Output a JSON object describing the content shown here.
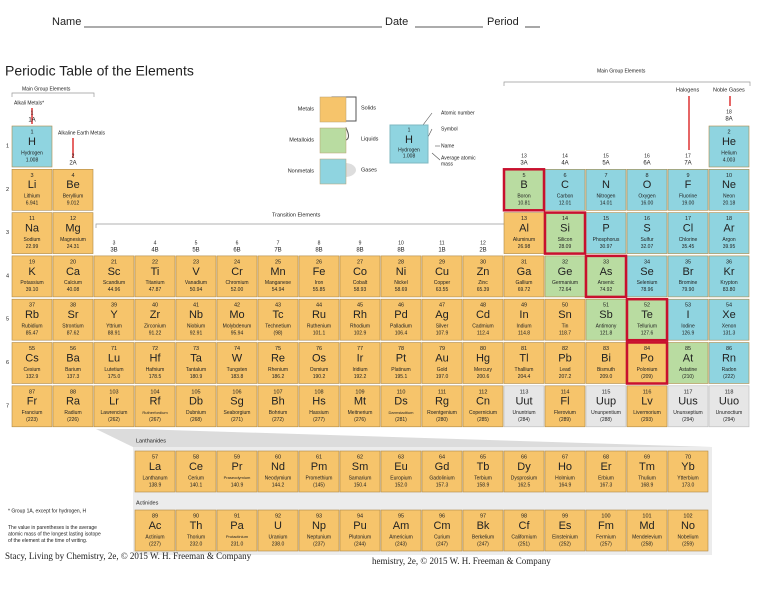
{
  "header": {
    "name": "Name",
    "date": "Date",
    "period": "Period"
  },
  "title": "Periodic Table of the Elements",
  "labels": {
    "main_group_left": "Main Group Elements",
    "alkali": "Alkali Metals*",
    "alkaline": "Alkaline Earth Metals",
    "transition": "Transition Elements",
    "main_group_right": "Main Group Elements",
    "halogens": "Halogens",
    "noble": "Noble Gases",
    "lanthanides": "Lanthanides",
    "actinides": "Actinides"
  },
  "legend": [
    {
      "label": "Metals",
      "color": "#f6c46b"
    },
    {
      "label": "Metalloids",
      "color": "#b9dca1"
    },
    {
      "label": "Nonmetals",
      "color": "#8fd4e0"
    }
  ],
  "unknown_color": "#e6e6e6",
  "states": [
    "Solids",
    "Liquids",
    "Gases"
  ],
  "key": {
    "number": 1,
    "symbol": "H",
    "name": "Hydrogen",
    "mass": "1.008",
    "callouts": [
      "Atomic number",
      "Symbol",
      "Name",
      "Average atomic",
      "mass"
    ]
  },
  "periods": [
    1,
    2,
    3,
    4,
    5,
    6,
    7
  ],
  "groups": [
    {
      "number": 1,
      "label": "1A"
    },
    {
      "number": 2,
      "label": "2A"
    },
    {
      "number": 3,
      "label": "3B"
    },
    {
      "number": 4,
      "label": "4B"
    },
    {
      "number": 5,
      "label": "5B"
    },
    {
      "number": 6,
      "label": "6B"
    },
    {
      "number": 7,
      "label": "7B"
    },
    {
      "number": 8,
      "label": "8B"
    },
    {
      "number": 9,
      "label": "8B"
    },
    {
      "number": 10,
      "label": "8B"
    },
    {
      "number": 11,
      "label": "1B"
    },
    {
      "number": 12,
      "label": "2B"
    },
    {
      "number": 13,
      "label": "3A"
    },
    {
      "number": 14,
      "label": "4A"
    },
    {
      "number": 15,
      "label": "5A"
    },
    {
      "number": 16,
      "label": "6A"
    },
    {
      "number": 17,
      "label": "7A"
    },
    {
      "number": 18,
      "label": "8A"
    }
  ],
  "elements": [
    [
      1,
      "H",
      "Hydrogen",
      "1.008",
      2
    ],
    [
      2,
      "He",
      "Helium",
      "4.003",
      2
    ],
    [
      3,
      "Li",
      "Lithium",
      "6.941",
      0
    ],
    [
      4,
      "Be",
      "Beryllium",
      "9.012",
      0
    ],
    [
      5,
      "B",
      "Boron",
      "10.81",
      1
    ],
    [
      6,
      "C",
      "Carbon",
      "12.01",
      2
    ],
    [
      7,
      "N",
      "Nitrogen",
      "14.01",
      2
    ],
    [
      8,
      "O",
      "Oxygen",
      "16.00",
      2
    ],
    [
      9,
      "F",
      "Fluorine",
      "19.00",
      2
    ],
    [
      10,
      "Ne",
      "Neon",
      "20.18",
      2
    ],
    [
      11,
      "Na",
      "Sodium",
      "22.99",
      0
    ],
    [
      12,
      "Mg",
      "Magnesium",
      "24.31",
      0
    ],
    [
      13,
      "Al",
      "Aluminum",
      "26.98",
      0
    ],
    [
      14,
      "Si",
      "Silicon",
      "28.09",
      1
    ],
    [
      15,
      "P",
      "Phosphorus",
      "30.97",
      2
    ],
    [
      16,
      "S",
      "Sulfur",
      "32.07",
      2
    ],
    [
      17,
      "Cl",
      "Chlorine",
      "35.45",
      2
    ],
    [
      18,
      "Ar",
      "Argon",
      "39.95",
      2
    ],
    [
      19,
      "K",
      "Potassium",
      "39.10",
      0
    ],
    [
      20,
      "Ca",
      "Calcium",
      "40.08",
      0
    ],
    [
      21,
      "Sc",
      "Scandium",
      "44.96",
      0
    ],
    [
      22,
      "Ti",
      "Titanium",
      "47.87",
      0
    ],
    [
      23,
      "V",
      "Vanadium",
      "50.94",
      0
    ],
    [
      24,
      "Cr",
      "Chromium",
      "52.00",
      0
    ],
    [
      25,
      "Mn",
      "Manganese",
      "54.94",
      0
    ],
    [
      26,
      "Fe",
      "Iron",
      "55.85",
      0
    ],
    [
      27,
      "Co",
      "Cobalt",
      "58.93",
      0
    ],
    [
      28,
      "Ni",
      "Nickel",
      "58.69",
      0
    ],
    [
      29,
      "Cu",
      "Copper",
      "63.55",
      0
    ],
    [
      30,
      "Zn",
      "Zinc",
      "65.39",
      0
    ],
    [
      31,
      "Ga",
      "Gallium",
      "69.72",
      0
    ],
    [
      32,
      "Ge",
      "Germanium",
      "72.64",
      1
    ],
    [
      33,
      "As",
      "Arsenic",
      "74.92",
      1
    ],
    [
      34,
      "Se",
      "Selenium",
      "78.96",
      2
    ],
    [
      35,
      "Br",
      "Bromine",
      "79.90",
      2
    ],
    [
      36,
      "Kr",
      "Krypton",
      "83.80",
      2
    ],
    [
      37,
      "Rb",
      "Rubidium",
      "85.47",
      0
    ],
    [
      38,
      "Sr",
      "Strontium",
      "87.62",
      0
    ],
    [
      39,
      "Y",
      "Yttrium",
      "88.91",
      0
    ],
    [
      40,
      "Zr",
      "Zirconium",
      "91.22",
      0
    ],
    [
      41,
      "Nb",
      "Niobium",
      "92.91",
      0
    ],
    [
      42,
      "Mo",
      "Molybdenum",
      "95.94",
      0
    ],
    [
      43,
      "Tc",
      "Technetium",
      "(98)",
      0
    ],
    [
      44,
      "Ru",
      "Ruthenium",
      "101.1",
      0
    ],
    [
      45,
      "Rh",
      "Rhodium",
      "102.9",
      0
    ],
    [
      46,
      "Pd",
      "Palladium",
      "106.4",
      0
    ],
    [
      47,
      "Ag",
      "Silver",
      "107.9",
      0
    ],
    [
      48,
      "Cd",
      "Cadmium",
      "112.4",
      0
    ],
    [
      49,
      "In",
      "Indium",
      "114.8",
      0
    ],
    [
      50,
      "Sn",
      "Tin",
      "118.7",
      0
    ],
    [
      51,
      "Sb",
      "Antimony",
      "121.8",
      1
    ],
    [
      52,
      "Te",
      "Tellurium",
      "127.6",
      1
    ],
    [
      53,
      "I",
      "Iodine",
      "126.9",
      2
    ],
    [
      54,
      "Xe",
      "Xenon",
      "131.3",
      2
    ],
    [
      55,
      "Cs",
      "Cesium",
      "132.9",
      0
    ],
    [
      56,
      "Ba",
      "Barium",
      "137.3",
      0
    ],
    [
      57,
      "La",
      "Lanthanum",
      "138.9",
      0
    ],
    [
      58,
      "Ce",
      "Cerium",
      "140.1",
      0
    ],
    [
      59,
      "Pr",
      "Praseodymium",
      "140.9",
      0
    ],
    [
      60,
      "Nd",
      "Neodymium",
      "144.2",
      0
    ],
    [
      61,
      "Pm",
      "Promethium",
      "(145)",
      0
    ],
    [
      62,
      "Sm",
      "Samarium",
      "150.4",
      0
    ],
    [
      63,
      "Eu",
      "Europium",
      "152.0",
      0
    ],
    [
      64,
      "Gd",
      "Gadolinium",
      "157.3",
      0
    ],
    [
      65,
      "Tb",
      "Terbium",
      "158.9",
      0
    ],
    [
      66,
      "Dy",
      "Dysprosium",
      "162.5",
      0
    ],
    [
      67,
      "Ho",
      "Holmium",
      "164.9",
      0
    ],
    [
      68,
      "Er",
      "Erbium",
      "167.3",
      0
    ],
    [
      69,
      "Tm",
      "Thulium",
      "168.9",
      0
    ],
    [
      70,
      "Yb",
      "Ytterbium",
      "173.0",
      0
    ],
    [
      71,
      "Lu",
      "Lutetium",
      "175.0",
      0
    ],
    [
      72,
      "Hf",
      "Hafnium",
      "178.5",
      0
    ],
    [
      73,
      "Ta",
      "Tantalum",
      "180.9",
      0
    ],
    [
      74,
      "W",
      "Tungsten",
      "183.8",
      0
    ],
    [
      75,
      "Re",
      "Rhenium",
      "186.2",
      0
    ],
    [
      76,
      "Os",
      "Osmium",
      "190.2",
      0
    ],
    [
      77,
      "Ir",
      "Iridium",
      "192.2",
      0
    ],
    [
      78,
      "Pt",
      "Platinum",
      "195.1",
      0
    ],
    [
      79,
      "Au",
      "Gold",
      "197.0",
      0
    ],
    [
      80,
      "Hg",
      "Mercury",
      "200.6",
      0
    ],
    [
      81,
      "Tl",
      "Thallium",
      "204.4",
      0
    ],
    [
      82,
      "Pb",
      "Lead",
      "207.2",
      0
    ],
    [
      83,
      "Bi",
      "Bismuth",
      "209.0",
      0
    ],
    [
      84,
      "Po",
      "Polonium",
      "(209)",
      0
    ],
    [
      85,
      "At",
      "Astatine",
      "(210)",
      1
    ],
    [
      86,
      "Rn",
      "Radon",
      "(222)",
      2
    ],
    [
      87,
      "Fr",
      "Francium",
      "(223)",
      0
    ],
    [
      88,
      "Ra",
      "Radium",
      "(226)",
      0
    ],
    [
      89,
      "Ac",
      "Actinium",
      "(227)",
      0
    ],
    [
      90,
      "Th",
      "Thorium",
      "232.0",
      0
    ],
    [
      91,
      "Pa",
      "Protactinium",
      "231.0",
      0
    ],
    [
      92,
      "U",
      "Uranium",
      "238.0",
      0
    ],
    [
      93,
      "Np",
      "Neptunium",
      "(237)",
      0
    ],
    [
      94,
      "Pu",
      "Plutonium",
      "(244)",
      0
    ],
    [
      95,
      "Am",
      "Americium",
      "(243)",
      0
    ],
    [
      96,
      "Cm",
      "Curium",
      "(247)",
      0
    ],
    [
      97,
      "Bk",
      "Berkelium",
      "(247)",
      0
    ],
    [
      98,
      "Cf",
      "Californium",
      "(251)",
      0
    ],
    [
      99,
      "Es",
      "Einsteinium",
      "(252)",
      0
    ],
    [
      100,
      "Fm",
      "Fermium",
      "(257)",
      0
    ],
    [
      101,
      "Md",
      "Mendelevium",
      "(258)",
      0
    ],
    [
      102,
      "No",
      "Nobelium",
      "(259)",
      0
    ],
    [
      103,
      "Lr",
      "Lawrencium",
      "(262)",
      0
    ],
    [
      104,
      "Rf",
      "Rutherfordium",
      "(267)",
      0
    ],
    [
      105,
      "Db",
      "Dubnium",
      "(268)",
      0
    ],
    [
      106,
      "Sg",
      "Seaborgium",
      "(271)",
      0
    ],
    [
      107,
      "Bh",
      "Bohrium",
      "(272)",
      0
    ],
    [
      108,
      "Hs",
      "Hassium",
      "(277)",
      0
    ],
    [
      109,
      "Mt",
      "Meitnerium",
      "(276)",
      0
    ],
    [
      110,
      "Ds",
      "Darmstadtium",
      "(281)",
      0
    ],
    [
      111,
      "Rg",
      "Roentgenium",
      "(280)",
      0
    ],
    [
      112,
      "Cn",
      "Copernicium",
      "(285)",
      0
    ],
    [
      113,
      "Uut",
      "Ununtrium",
      "(284)",
      3
    ],
    [
      114,
      "Fl",
      "Flerovium",
      "(289)",
      0
    ],
    [
      115,
      "Uup",
      "Ununpentium",
      "(288)",
      3
    ],
    [
      116,
      "Lv",
      "Livermorium",
      "(293)",
      0
    ],
    [
      117,
      "Uus",
      "Ununseptium",
      "(294)",
      3
    ],
    [
      118,
      "Uuo",
      "Ununoctium",
      "(294)",
      3
    ]
  ],
  "footnotes": [
    "* Group 1A, except for hydrogen, H",
    "The value in parentheses is the average",
    "atomic mass of the longest lasting isotope",
    "of the element at the time of writing."
  ],
  "credit": "Stacy, Living by Chemistry, 2e, © 2015 W. H. Freeman & Company",
  "credit_overlap": "hemistry, 2e, © 2015 W. H. Freeman & Company"
}
